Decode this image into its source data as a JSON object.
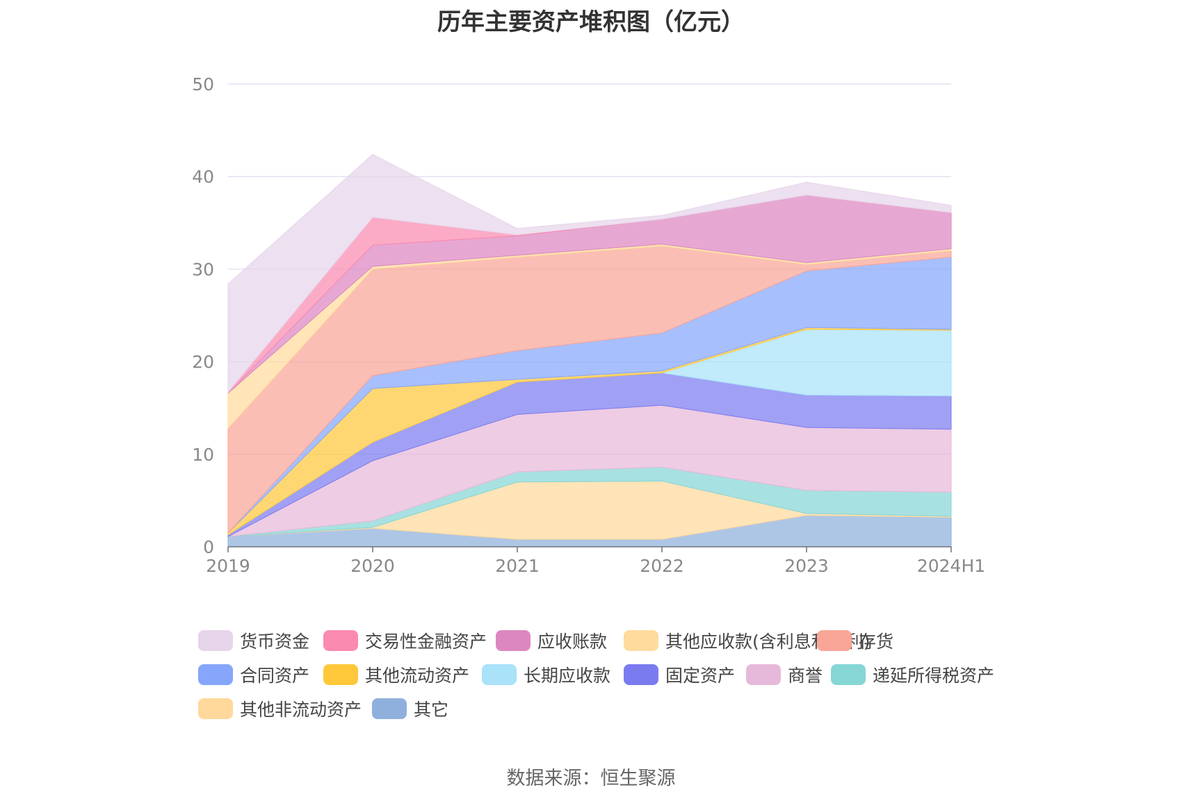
{
  "chart_data": {
    "type": "area",
    "stacked": true,
    "title": "历年主要资产堆积图（亿元）",
    "categories": [
      "2019",
      "2020",
      "2021",
      "2022",
      "2023",
      "2024H1"
    ],
    "ylim": [
      0,
      50
    ],
    "yticks": [
      0,
      10,
      20,
      30,
      40,
      50
    ],
    "grid": true,
    "legend_position": "bottom",
    "series": [
      {
        "name": "其它",
        "color": "#8fb0dc",
        "values": [
          1.1,
          2.0,
          0.8,
          0.8,
          3.4,
          3.2
        ]
      },
      {
        "name": "其他非流动资产",
        "color": "#ffd99b",
        "values": [
          0.0,
          0.1,
          6.2,
          6.3,
          0.2,
          0.1
        ]
      },
      {
        "name": "递延所得税资产",
        "color": "#86d6d6",
        "values": [
          0.0,
          0.7,
          1.1,
          1.5,
          2.5,
          2.6
        ]
      },
      {
        "name": "商誉",
        "color": "#e6b9da",
        "values": [
          0.0,
          6.5,
          6.2,
          6.7,
          6.8,
          6.8
        ]
      },
      {
        "name": "固定资产",
        "color": "#7b7bf0",
        "values": [
          0.2,
          2.0,
          3.5,
          3.5,
          3.5,
          3.6
        ]
      },
      {
        "name": "长期应收款",
        "color": "#a9e2f9",
        "values": [
          0.0,
          0.0,
          0.0,
          0.0,
          7.1,
          7.1
        ]
      },
      {
        "name": "其他流动资产",
        "color": "#ffc83b",
        "values": [
          0.2,
          5.8,
          0.3,
          0.2,
          0.2,
          0.1
        ]
      },
      {
        "name": "合同资产",
        "color": "#86a6fc",
        "values": [
          0.0,
          1.4,
          3.1,
          4.1,
          6.1,
          7.8
        ]
      },
      {
        "name": "存货",
        "color": "#f9a597",
        "values": [
          11.3,
          11.5,
          10.1,
          9.4,
          0.7,
          0.7
        ]
      },
      {
        "name": "其他应收款(含利息和股利)",
        "color": "#ffdb9c",
        "values": [
          3.8,
          0.3,
          0.2,
          0.2,
          0.2,
          0.2
        ]
      },
      {
        "name": "应收账款",
        "color": "#dd87c0",
        "values": [
          0.0,
          2.3,
          2.1,
          2.7,
          7.3,
          3.9
        ]
      },
      {
        "name": "交易性金融资产",
        "color": "#fb8ab0",
        "values": [
          0.1,
          3.0,
          0.1,
          0.0,
          0.0,
          0.0
        ]
      },
      {
        "name": "货币资金",
        "color": "#e6d4ea",
        "values": [
          11.7,
          6.8,
          0.7,
          0.4,
          1.4,
          0.8
        ]
      }
    ],
    "legend_order": [
      "货币资金",
      "交易性金融资产",
      "应收账款",
      "其他应收款(含利息和股利)",
      "存货",
      "合同资产",
      "其他流动资产",
      "长期应收款",
      "固定资产",
      "商誉",
      "递延所得税资产",
      "其他非流动资产",
      "其它"
    ]
  },
  "source_note": "数据来源：恒生聚源"
}
